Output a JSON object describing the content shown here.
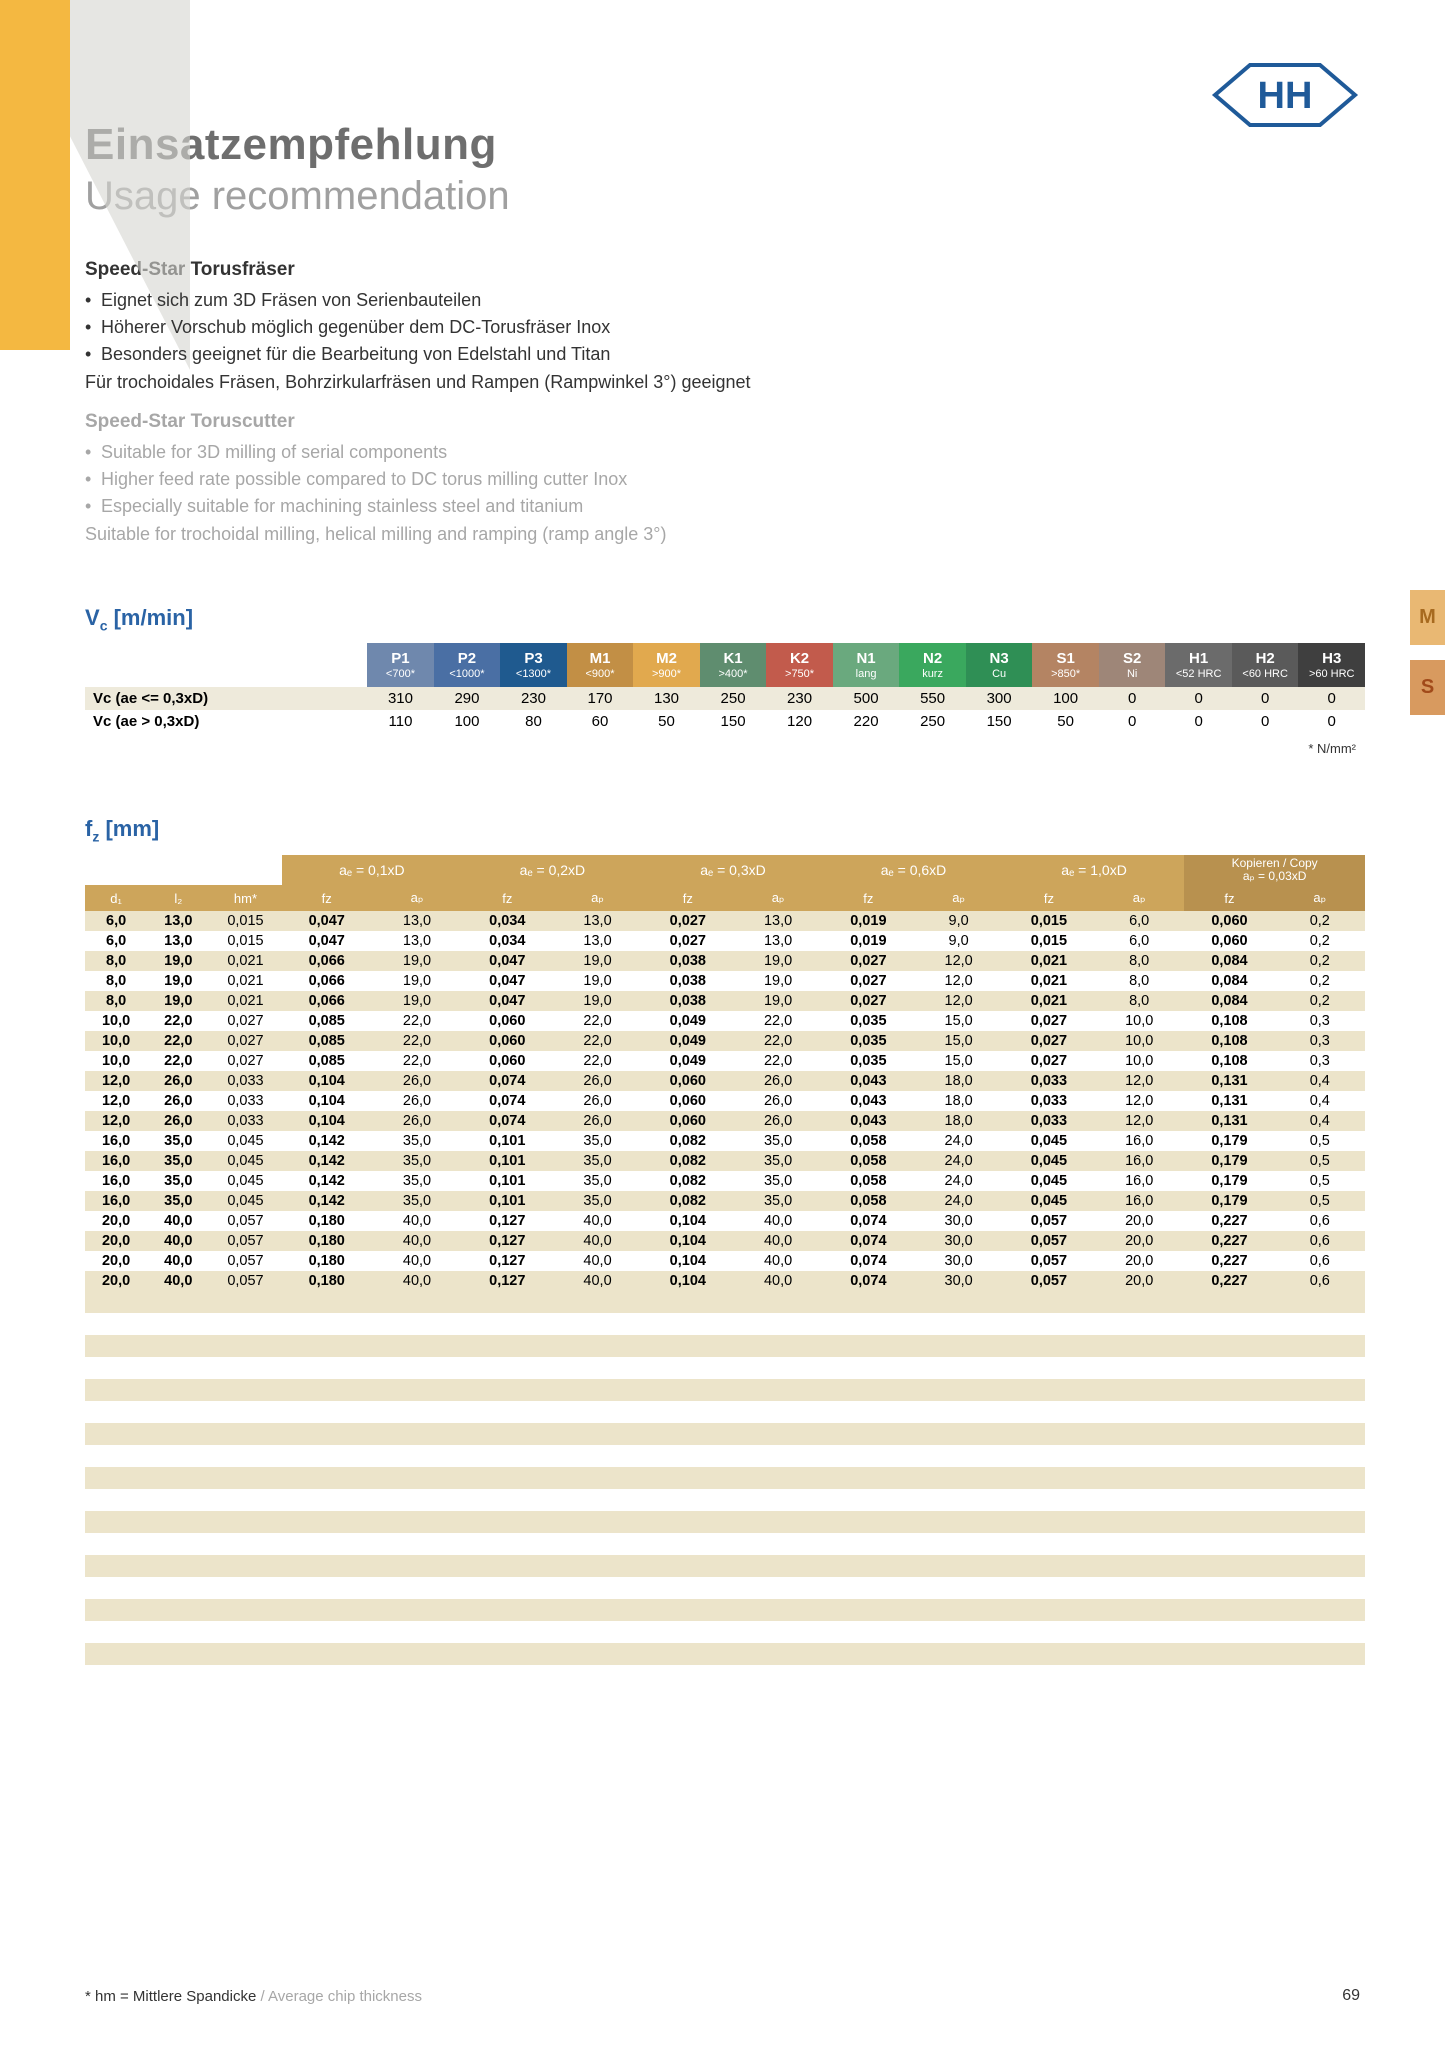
{
  "header": {
    "title_de": "Einsatzempfehlung",
    "title_en": "Usage recommendation"
  },
  "intro": {
    "title_de": "Speed-Star Torusfräser",
    "bullets_de": [
      "Eignet sich zum 3D Fräsen von Serienbauteilen",
      "Höherer Vorschub möglich gegenüber dem DC-Torusfräser Inox",
      "Besonders geeignet für die Bearbeitung von Edelstahl und Titan"
    ],
    "sub_de": "Für trochoidales Fräsen, Bohrzirkularfräsen und Rampen (Rampwinkel 3°) geeignet",
    "title_en": "Speed-Star Toruscutter",
    "bullets_en": [
      "Suitable for 3D milling of serial components",
      "Higher feed rate possible compared to DC torus milling cutter Inox",
      "Especially suitable for machining stainless steel and titanium"
    ],
    "sub_en": "Suitable for trochoidal milling, helical milling and ramping (ramp angle 3°)"
  },
  "vc_table": {
    "title_html": "V<sub>c</sub> [m/min]",
    "footnote": "* N/mm²",
    "row_labels": [
      "Vc (ae <= 0,3xD)",
      "Vc (ae > 0,3xD)"
    ],
    "header_colors": [
      "#6f88ad",
      "#4a6fa4",
      "#1f5a8f",
      "#c28f45",
      "#e1a94e",
      "#5f8d6f",
      "#c25b4c",
      "#6aa97e",
      "#3aa85e",
      "#2f8f55",
      "#b48463",
      "#9e8678",
      "#6b6b6b",
      "#5a5a5a",
      "#3f3f3f"
    ],
    "columns": [
      {
        "t": "P1",
        "s": "<700*"
      },
      {
        "t": "P2",
        "s": "<1000*"
      },
      {
        "t": "P3",
        "s": "<1300*"
      },
      {
        "t": "M1",
        "s": "<900*"
      },
      {
        "t": "M2",
        "s": ">900*"
      },
      {
        "t": "K1",
        "s": ">400*"
      },
      {
        "t": "K2",
        "s": ">750*"
      },
      {
        "t": "N1",
        "s": "lang"
      },
      {
        "t": "N2",
        "s": "kurz"
      },
      {
        "t": "N3",
        "s": "Cu"
      },
      {
        "t": "S1",
        "s": ">850*"
      },
      {
        "t": "S2",
        "s": "Ni"
      },
      {
        "t": "H1",
        "s": "<52 HRC"
      },
      {
        "t": "H2",
        "s": "<60 HRC"
      },
      {
        "t": "H3",
        "s": ">60 HRC"
      }
    ],
    "rows": [
      [
        "310",
        "290",
        "230",
        "170",
        "130",
        "250",
        "230",
        "500",
        "550",
        "300",
        "100",
        "0",
        "0",
        "0",
        "0"
      ],
      [
        "110",
        "100",
        "80",
        "60",
        "50",
        "150",
        "120",
        "220",
        "250",
        "150",
        "50",
        "0",
        "0",
        "0",
        "0"
      ]
    ]
  },
  "fz_table": {
    "title_html": "f<sub>z</sub> [mm]",
    "group_headers": [
      "aₑ = 0,1xD",
      "aₑ = 0,2xD",
      "aₑ = 0,3xD",
      "aₑ = 0,6xD",
      "aₑ = 1,0xD",
      "Kopieren / Copy\naₚ = 0,03xD"
    ],
    "lead_cols": [
      "d₁",
      "l₂",
      "hm*"
    ],
    "pair_cols": [
      "fz",
      "aₚ"
    ],
    "rows": [
      [
        "6,0",
        "13,0",
        "0,015",
        "0,047",
        "13,0",
        "0,034",
        "13,0",
        "0,027",
        "13,0",
        "0,019",
        "9,0",
        "0,015",
        "6,0",
        "0,060",
        "0,2"
      ],
      [
        "6,0",
        "13,0",
        "0,015",
        "0,047",
        "13,0",
        "0,034",
        "13,0",
        "0,027",
        "13,0",
        "0,019",
        "9,0",
        "0,015",
        "6,0",
        "0,060",
        "0,2"
      ],
      [
        "8,0",
        "19,0",
        "0,021",
        "0,066",
        "19,0",
        "0,047",
        "19,0",
        "0,038",
        "19,0",
        "0,027",
        "12,0",
        "0,021",
        "8,0",
        "0,084",
        "0,2"
      ],
      [
        "8,0",
        "19,0",
        "0,021",
        "0,066",
        "19,0",
        "0,047",
        "19,0",
        "0,038",
        "19,0",
        "0,027",
        "12,0",
        "0,021",
        "8,0",
        "0,084",
        "0,2"
      ],
      [
        "8,0",
        "19,0",
        "0,021",
        "0,066",
        "19,0",
        "0,047",
        "19,0",
        "0,038",
        "19,0",
        "0,027",
        "12,0",
        "0,021",
        "8,0",
        "0,084",
        "0,2"
      ],
      [
        "10,0",
        "22,0",
        "0,027",
        "0,085",
        "22,0",
        "0,060",
        "22,0",
        "0,049",
        "22,0",
        "0,035",
        "15,0",
        "0,027",
        "10,0",
        "0,108",
        "0,3"
      ],
      [
        "10,0",
        "22,0",
        "0,027",
        "0,085",
        "22,0",
        "0,060",
        "22,0",
        "0,049",
        "22,0",
        "0,035",
        "15,0",
        "0,027",
        "10,0",
        "0,108",
        "0,3"
      ],
      [
        "10,0",
        "22,0",
        "0,027",
        "0,085",
        "22,0",
        "0,060",
        "22,0",
        "0,049",
        "22,0",
        "0,035",
        "15,0",
        "0,027",
        "10,0",
        "0,108",
        "0,3"
      ],
      [
        "12,0",
        "26,0",
        "0,033",
        "0,104",
        "26,0",
        "0,074",
        "26,0",
        "0,060",
        "26,0",
        "0,043",
        "18,0",
        "0,033",
        "12,0",
        "0,131",
        "0,4"
      ],
      [
        "12,0",
        "26,0",
        "0,033",
        "0,104",
        "26,0",
        "0,074",
        "26,0",
        "0,060",
        "26,0",
        "0,043",
        "18,0",
        "0,033",
        "12,0",
        "0,131",
        "0,4"
      ],
      [
        "12,0",
        "26,0",
        "0,033",
        "0,104",
        "26,0",
        "0,074",
        "26,0",
        "0,060",
        "26,0",
        "0,043",
        "18,0",
        "0,033",
        "12,0",
        "0,131",
        "0,4"
      ],
      [
        "16,0",
        "35,0",
        "0,045",
        "0,142",
        "35,0",
        "0,101",
        "35,0",
        "0,082",
        "35,0",
        "0,058",
        "24,0",
        "0,045",
        "16,0",
        "0,179",
        "0,5"
      ],
      [
        "16,0",
        "35,0",
        "0,045",
        "0,142",
        "35,0",
        "0,101",
        "35,0",
        "0,082",
        "35,0",
        "0,058",
        "24,0",
        "0,045",
        "16,0",
        "0,179",
        "0,5"
      ],
      [
        "16,0",
        "35,0",
        "0,045",
        "0,142",
        "35,0",
        "0,101",
        "35,0",
        "0,082",
        "35,0",
        "0,058",
        "24,0",
        "0,045",
        "16,0",
        "0,179",
        "0,5"
      ],
      [
        "16,0",
        "35,0",
        "0,045",
        "0,142",
        "35,0",
        "0,101",
        "35,0",
        "0,082",
        "35,0",
        "0,058",
        "24,0",
        "0,045",
        "16,0",
        "0,179",
        "0,5"
      ],
      [
        "20,0",
        "40,0",
        "0,057",
        "0,180",
        "40,0",
        "0,127",
        "40,0",
        "0,104",
        "40,0",
        "0,074",
        "30,0",
        "0,057",
        "20,0",
        "0,227",
        "0,6"
      ],
      [
        "20,0",
        "40,0",
        "0,057",
        "0,180",
        "40,0",
        "0,127",
        "40,0",
        "0,104",
        "40,0",
        "0,074",
        "30,0",
        "0,057",
        "20,0",
        "0,227",
        "0,6"
      ],
      [
        "20,0",
        "40,0",
        "0,057",
        "0,180",
        "40,0",
        "0,127",
        "40,0",
        "0,104",
        "40,0",
        "0,074",
        "30,0",
        "0,057",
        "20,0",
        "0,227",
        "0,6"
      ],
      [
        "20,0",
        "40,0",
        "0,057",
        "0,180",
        "40,0",
        "0,127",
        "40,0",
        "0,104",
        "40,0",
        "0,074",
        "30,0",
        "0,057",
        "20,0",
        "0,227",
        "0,6"
      ]
    ],
    "empty_rows": 17
  },
  "footer": {
    "note_de": "* hm = Mittlere Spandicke",
    "note_en": " / Average chip thickness",
    "page": "69"
  },
  "colors": {
    "accent_blue": "#2a63a5",
    "header_fz": "#cda55b",
    "header_fz_copy": "#b8914f",
    "row_alt": "#ece4ca",
    "logo_blue": "#1f5a99"
  }
}
